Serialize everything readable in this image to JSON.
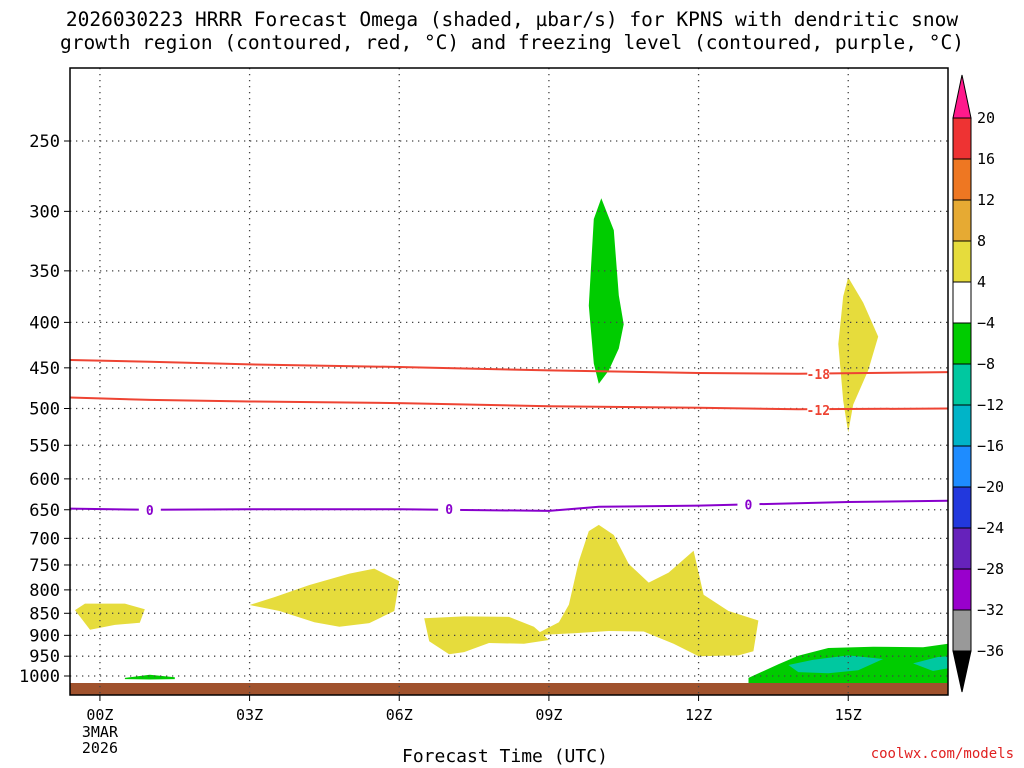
{
  "title_lines": [
    "2026030223 HRRR Forecast Omega (shaded, µbar/s) for KPNS with dendritic snow",
    "growth region (contoured, red, °C) and freezing level (contoured, purple, °C)"
  ],
  "credit": "coolwx.com/models",
  "colors": {
    "green": "#00cc00",
    "teal": "#00c8a0",
    "yellow": "#e6dc3c",
    "dsgz": "#ee4433",
    "freezing": "#8800cc",
    "ground": "#a0522d"
  },
  "chart_data": {
    "type": "heatmap",
    "xlabel": "Forecast Time (UTC)",
    "ylabel": "",
    "xlim": [
      -0.6,
      17
    ],
    "ylim_hpa": [
      1030,
      200
    ],
    "x_ticks": [
      {
        "value": 0,
        "label": "00Z"
      },
      {
        "value": 3,
        "label": "03Z"
      },
      {
        "value": 6,
        "label": "06Z"
      },
      {
        "value": 9,
        "label": "09Z"
      },
      {
        "value": 12,
        "label": "12Z"
      },
      {
        "value": 15,
        "label": "15Z"
      }
    ],
    "date_label": [
      "3MAR",
      "2026"
    ],
    "y_ticks": [
      250,
      300,
      350,
      400,
      450,
      500,
      550,
      600,
      650,
      700,
      750,
      800,
      850,
      900,
      950,
      1000
    ],
    "grid": true,
    "colorbar": {
      "labels": [
        20,
        16,
        12,
        8,
        4,
        -4,
        -8,
        -12,
        -16,
        -20,
        -24,
        -28,
        -32,
        -36
      ],
      "colors": [
        "#ff1a8c",
        "#ee3333",
        "#ee7722",
        "#e6aa33",
        "#e6dc3c",
        "#ffffff",
        "#00cc00",
        "#00c8a0",
        "#00b4c8",
        "#1e8cff",
        "#2238dd",
        "#6622bb",
        "#9900cc",
        "#999999",
        "#000000"
      ]
    },
    "contours": [
      {
        "name": "-18",
        "color": "#ee4433",
        "points": [
          [
            -0.6,
            441
          ],
          [
            1,
            443
          ],
          [
            3,
            446
          ],
          [
            6,
            449
          ],
          [
            9,
            453
          ],
          [
            12,
            456
          ],
          [
            14,
            457
          ],
          [
            17,
            455
          ]
        ],
        "label_at": [
          14.4,
          457
        ]
      },
      {
        "name": "-12",
        "color": "#ee4433",
        "points": [
          [
            -0.6,
            486
          ],
          [
            1,
            489
          ],
          [
            3,
            491
          ],
          [
            6,
            493
          ],
          [
            9,
            497
          ],
          [
            12,
            499
          ],
          [
            14,
            501
          ],
          [
            17,
            500
          ]
        ],
        "label_at": [
          14.4,
          502
        ]
      },
      {
        "name": "0",
        "color": "#8800cc",
        "points": [
          [
            -0.6,
            648
          ],
          [
            1,
            650
          ],
          [
            3,
            649
          ],
          [
            6,
            649
          ],
          [
            9,
            652
          ],
          [
            10,
            645
          ],
          [
            12,
            643
          ],
          [
            15,
            637
          ],
          [
            17,
            635
          ]
        ],
        "label_at": [
          [
            1,
            650
          ],
          [
            7,
            649
          ],
          [
            13,
            641
          ]
        ]
      }
    ],
    "regions": [
      {
        "color": "green",
        "points": [
          [
            9.8,
            383
          ],
          [
            9.9,
            306
          ],
          [
            10.05,
            290
          ],
          [
            10.3,
            315
          ],
          [
            10.4,
            373
          ],
          [
            10.5,
            402
          ],
          [
            10.4,
            428
          ],
          [
            10.2,
            453
          ],
          [
            10.0,
            469
          ],
          [
            9.9,
            445
          ]
        ]
      },
      {
        "color": "yellow",
        "points": [
          [
            14.8,
            423
          ],
          [
            14.9,
            374
          ],
          [
            15.0,
            356
          ],
          [
            15.3,
            380
          ],
          [
            15.6,
            415
          ],
          [
            15.4,
            453
          ],
          [
            15.1,
            495
          ],
          [
            15.0,
            532
          ],
          [
            14.9,
            490
          ]
        ]
      },
      {
        "color": "yellow",
        "points": [
          [
            9.2,
            870
          ],
          [
            9.4,
            831
          ],
          [
            9.6,
            743
          ],
          [
            9.8,
            687
          ],
          [
            10.0,
            676
          ],
          [
            10.3,
            694
          ],
          [
            10.6,
            748
          ],
          [
            11.0,
            785
          ],
          [
            11.4,
            765
          ],
          [
            11.9,
            723
          ],
          [
            12.1,
            810
          ],
          [
            12.6,
            845
          ],
          [
            13.2,
            866
          ],
          [
            13.1,
            938
          ],
          [
            12.8,
            948
          ],
          [
            12.0,
            950
          ],
          [
            11.5,
            920
          ],
          [
            10.9,
            891
          ],
          [
            10.2,
            890
          ],
          [
            9.5,
            895
          ],
          [
            8.7,
            900
          ]
        ]
      },
      {
        "color": "yellow",
        "points": [
          [
            3.0,
            832
          ],
          [
            3.5,
            815
          ],
          [
            4.2,
            790
          ],
          [
            5.0,
            767
          ],
          [
            5.5,
            757
          ],
          [
            6.0,
            782
          ],
          [
            5.9,
            845
          ],
          [
            5.4,
            872
          ],
          [
            4.8,
            880
          ],
          [
            4.3,
            870
          ],
          [
            3.6,
            845
          ]
        ]
      },
      {
        "color": "yellow",
        "points": [
          [
            6.5,
            861
          ],
          [
            7.3,
            857
          ],
          [
            8.2,
            858
          ],
          [
            8.7,
            880
          ],
          [
            9.0,
            911
          ],
          [
            8.5,
            920
          ],
          [
            7.8,
            918
          ],
          [
            7.3,
            940
          ],
          [
            7.0,
            945
          ],
          [
            6.6,
            914
          ]
        ]
      },
      {
        "color": "yellow",
        "points": [
          [
            -0.5,
            843
          ],
          [
            -0.3,
            829
          ],
          [
            0.5,
            829
          ],
          [
            0.9,
            841
          ],
          [
            0.8,
            871
          ],
          [
            0.3,
            876
          ],
          [
            -0.2,
            887
          ]
        ]
      },
      {
        "color": "green",
        "points": [
          [
            0.5,
            1005
          ],
          [
            1.0,
            997
          ],
          [
            1.5,
            1003
          ],
          [
            1.5,
            1008
          ],
          [
            1.0,
            1009
          ],
          [
            0.5,
            1008
          ]
        ]
      },
      {
        "color": "green",
        "points": [
          [
            13.0,
            1005
          ],
          [
            13.6,
            970
          ],
          [
            14.0,
            949
          ],
          [
            14.6,
            930
          ],
          [
            15.5,
            927
          ],
          [
            16.5,
            928
          ],
          [
            17,
            920
          ],
          [
            17,
            1023
          ],
          [
            13.0,
            1023
          ]
        ]
      },
      {
        "color": "teal",
        "points": [
          [
            13.8,
            972
          ],
          [
            14.3,
            959
          ],
          [
            15.0,
            948
          ],
          [
            15.7,
            957
          ],
          [
            15.2,
            985
          ],
          [
            14.6,
            993
          ],
          [
            14.0,
            990
          ]
        ]
      },
      {
        "color": "teal",
        "points": [
          [
            16.3,
            968
          ],
          [
            16.8,
            952
          ],
          [
            17,
            950
          ],
          [
            17,
            980
          ],
          [
            16.7,
            987
          ]
        ]
      }
    ]
  }
}
